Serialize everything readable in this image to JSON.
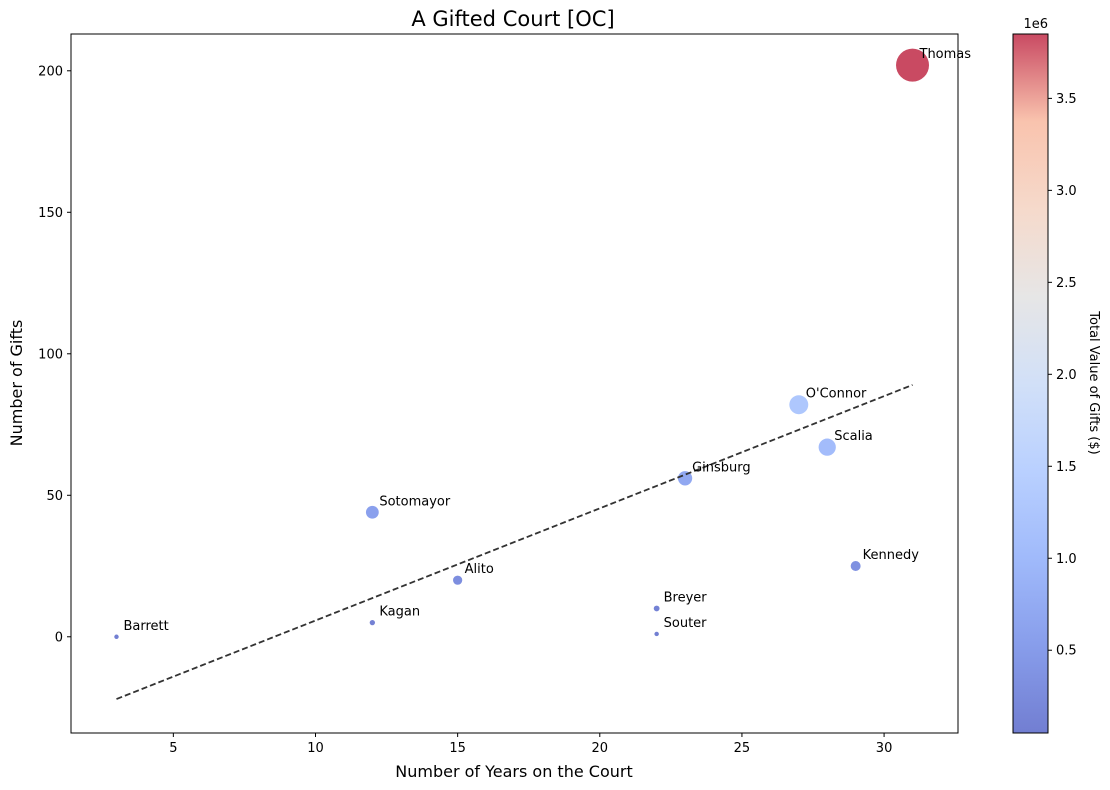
{
  "chart_data": {
    "type": "scatter",
    "title": "A Gifted Court [OC]",
    "xlabel": "Number of Years on the Court",
    "ylabel": "Number of Gifts",
    "xlim": [
      1.4,
      32.6
    ],
    "ylim": [
      -34,
      213
    ],
    "x_ticks": [
      5,
      10,
      15,
      20,
      25,
      30
    ],
    "y_ticks": [
      0,
      50,
      100,
      150,
      200
    ],
    "grid": false,
    "points": [
      {
        "label": "Thomas",
        "x": 31,
        "y": 202,
        "value": 3850000
      },
      {
        "label": "O'Connor",
        "x": 27,
        "y": 82,
        "value": 1270000
      },
      {
        "label": "Scalia",
        "x": 28,
        "y": 67,
        "value": 1050000
      },
      {
        "label": "Ginsburg",
        "x": 23,
        "y": 56,
        "value": 720000
      },
      {
        "label": "Sotomayor",
        "x": 12,
        "y": 44,
        "value": 580000
      },
      {
        "label": "Kennedy",
        "x": 29,
        "y": 25,
        "value": 350000
      },
      {
        "label": "Alito",
        "x": 15,
        "y": 20,
        "value": 300000
      },
      {
        "label": "Breyer",
        "x": 22,
        "y": 10,
        "value": 120000
      },
      {
        "label": "Kagan",
        "x": 12,
        "y": 5,
        "value": 100000
      },
      {
        "label": "Souter",
        "x": 22,
        "y": 1,
        "value": 70000
      },
      {
        "label": "Barrett",
        "x": 3,
        "y": 0,
        "value": 70000
      }
    ],
    "trendline": {
      "style": "dashed",
      "x": [
        3,
        31
      ],
      "y": [
        -22,
        89
      ]
    },
    "colorbar": {
      "label": "Total Value of Gifts ($)",
      "colormap": "coolwarm",
      "range": [
        50000,
        3850000
      ],
      "ticks": [
        0.5,
        1.0,
        1.5,
        2.0,
        2.5,
        3.0,
        3.5
      ],
      "tick_labels": [
        "0.5",
        "1.0",
        "1.5",
        "2.0",
        "2.5",
        "3.0",
        "3.5"
      ],
      "scale_label": "1e6"
    }
  }
}
